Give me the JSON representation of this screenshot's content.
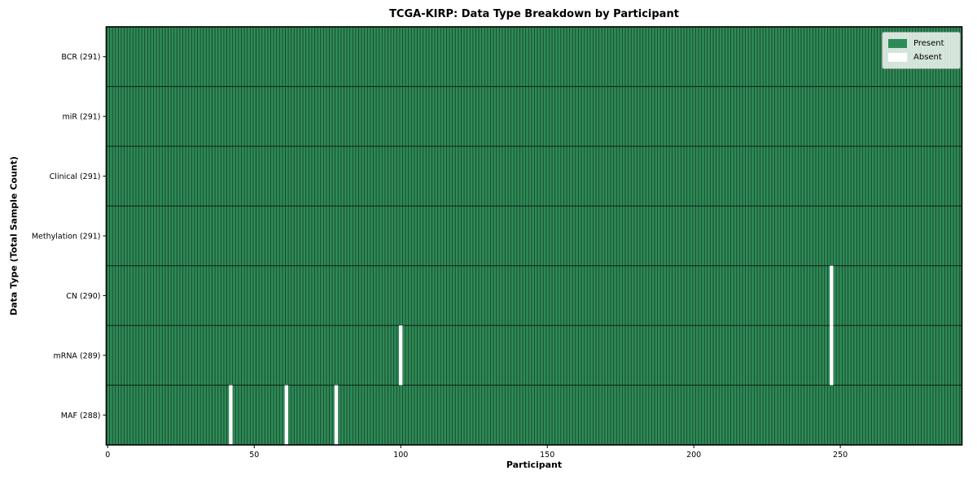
{
  "chart_data": {
    "type": "heatmap",
    "title": "TCGA-KIRP: Data Type Breakdown by Participant",
    "xlabel": "Participant",
    "ylabel": "Data Type (Total Sample Count)",
    "n_participants": 291,
    "xlim": [
      -0.5,
      291.5
    ],
    "xticks": [
      0,
      50,
      100,
      150,
      200,
      250
    ],
    "grid": false,
    "rows": [
      {
        "label": "BCR",
        "total": 291,
        "absent_participants": []
      },
      {
        "label": "miR",
        "total": 291,
        "absent_participants": []
      },
      {
        "label": "Clinical",
        "total": 291,
        "absent_participants": []
      },
      {
        "label": "Methylation",
        "total": 291,
        "absent_participants": []
      },
      {
        "label": "CN",
        "total": 290,
        "absent_participants": [
          247
        ]
      },
      {
        "label": "mRNA",
        "total": 289,
        "absent_participants": [
          100,
          247
        ]
      },
      {
        "label": "MAF",
        "total": 288,
        "absent_participants": [
          42,
          61,
          78
        ]
      }
    ],
    "legend": {
      "position": "upper right",
      "entries": [
        {
          "label": "Present",
          "color": "#2e8b57"
        },
        {
          "label": "Absent",
          "color": "#ffffff"
        }
      ]
    },
    "colors": {
      "present": "#2e8b57",
      "absent": "#ffffff",
      "cell_edge": "#17432a",
      "row_separator": "#0f2a1a",
      "axis": "#000000"
    }
  }
}
